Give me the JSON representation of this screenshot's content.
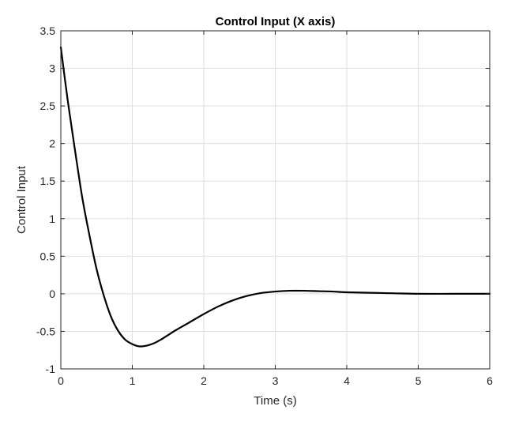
{
  "chart_data": {
    "type": "line",
    "title": "Control Input (X axis)",
    "xlabel": "Time (s)",
    "ylabel": "Control Input",
    "xlim": [
      0,
      6
    ],
    "ylim": [
      -1,
      3.5
    ],
    "xticks": [
      0,
      1,
      2,
      3,
      4,
      5,
      6
    ],
    "xtick_labels": [
      "0",
      "1",
      "2",
      "3",
      "4",
      "5",
      "6"
    ],
    "yticks": [
      -1,
      -0.5,
      0,
      0.5,
      1,
      1.5,
      2,
      2.5,
      3,
      3.5
    ],
    "ytick_labels": [
      "-1",
      "-0.5",
      "0",
      "0.5",
      "1",
      "1.5",
      "2",
      "2.5",
      "3",
      "3.5"
    ],
    "grid": true,
    "legend": "none",
    "series": [
      {
        "color": "#000000",
        "x": [
          0,
          0.1,
          0.2,
          0.3,
          0.4,
          0.5,
          0.6,
          0.7,
          0.8,
          0.9,
          1.0,
          1.1,
          1.2,
          1.3,
          1.4,
          1.5,
          1.6,
          1.8,
          2.0,
          2.2,
          2.4,
          2.6,
          2.8,
          3.0,
          3.2,
          3.4,
          3.6,
          3.8,
          4.0,
          4.5,
          5.0,
          5.5,
          6.0
        ],
        "y": [
          3.28,
          2.55,
          1.9,
          1.28,
          0.78,
          0.33,
          -0.02,
          -0.3,
          -0.49,
          -0.61,
          -0.67,
          -0.7,
          -0.69,
          -0.66,
          -0.61,
          -0.55,
          -0.49,
          -0.38,
          -0.27,
          -0.17,
          -0.09,
          -0.03,
          0.01,
          0.03,
          0.04,
          0.04,
          0.035,
          0.03,
          0.02,
          0.01,
          0.0,
          0.0,
          0.0
        ]
      }
    ]
  }
}
